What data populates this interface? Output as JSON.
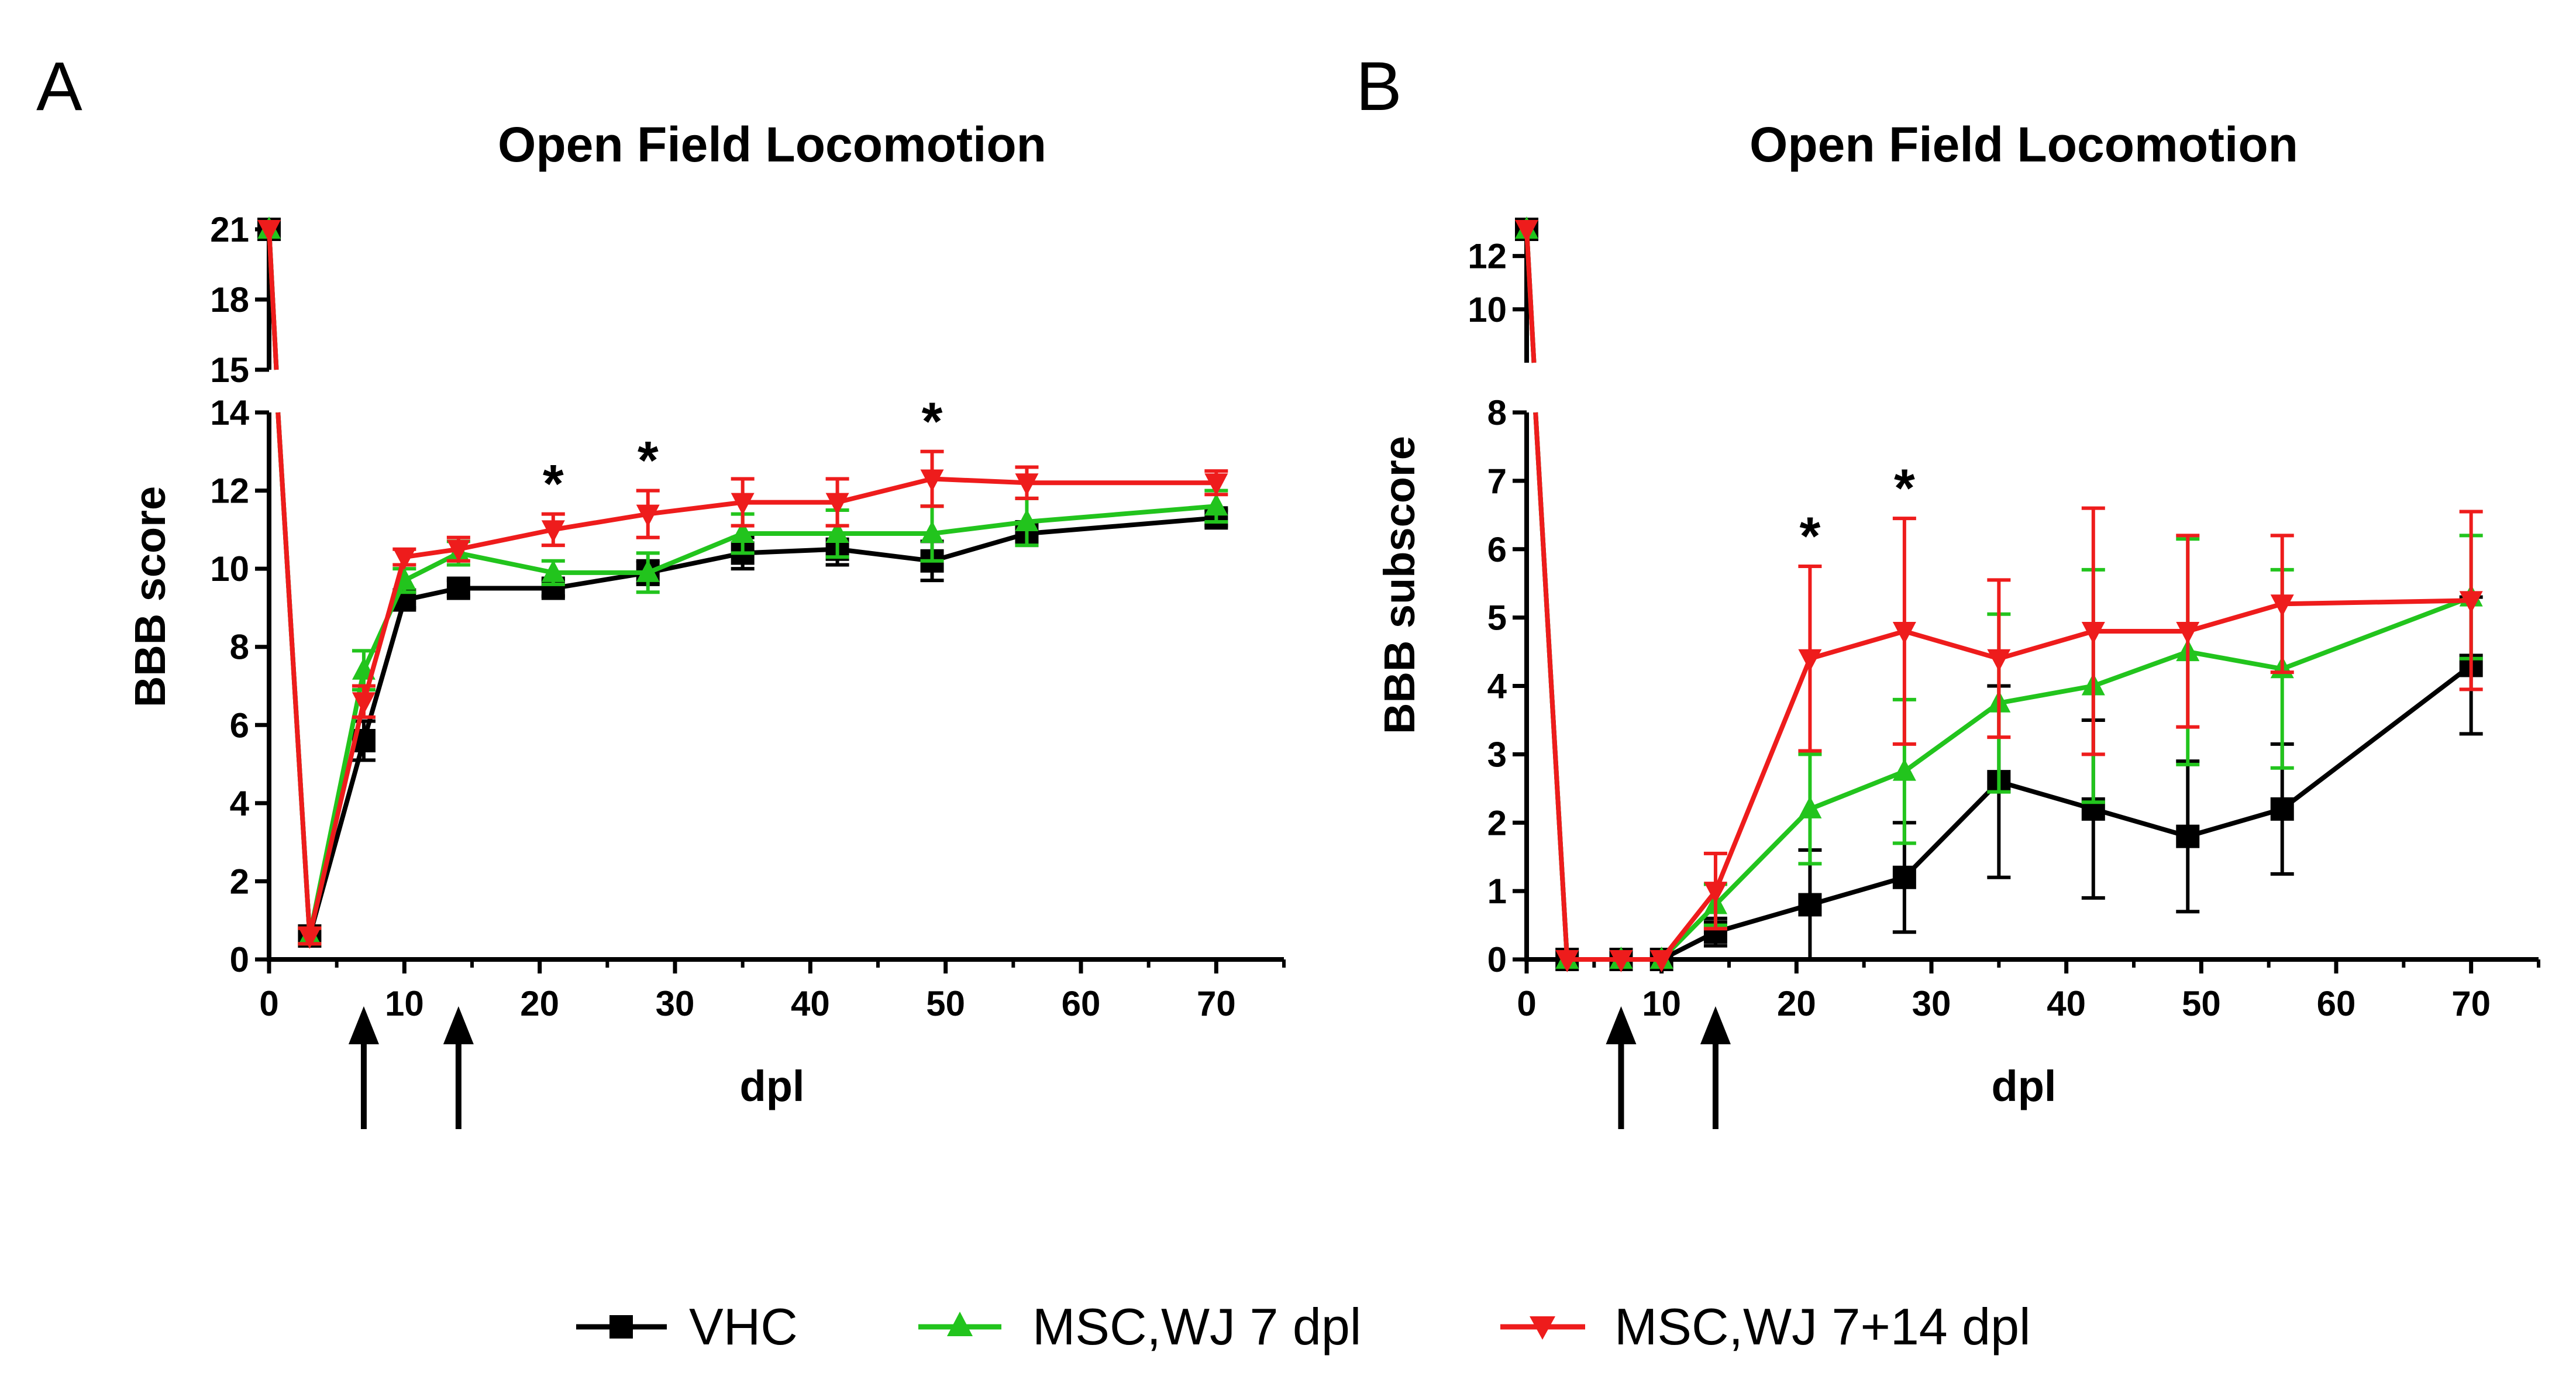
{
  "colors": {
    "VHC": "#000000",
    "MSC,WJ 7 dpl": "#22c41d",
    "MSC,WJ 7+14 dpl": "#ee1c1c"
  },
  "legend": [
    "VHC",
    "MSC,WJ 7 dpl",
    "MSC,WJ 7+14 dpl"
  ],
  "chart_data": [
    {
      "panel": "A",
      "type": "line",
      "title": "Open Field Locomotion",
      "xlabel": "dpl",
      "ylabel": "BBB score",
      "xlim": [
        0,
        75
      ],
      "x_ticks": [
        0,
        10,
        20,
        30,
        40,
        50,
        60,
        70
      ],
      "ylim_lower": [
        0,
        14
      ],
      "ylim_upper": [
        15,
        21
      ],
      "y_ticks_lower": [
        0,
        2,
        4,
        6,
        8,
        10,
        12,
        14
      ],
      "y_ticks_upper": [
        15,
        18,
        21
      ],
      "significance_x": [
        21,
        28,
        49
      ],
      "significance_label": "*",
      "treatment_arrows_x": [
        7,
        14
      ],
      "series": [
        {
          "name": "VHC",
          "marker": "square",
          "x": [
            0,
            3,
            7,
            10,
            14,
            21,
            28,
            35,
            42,
            49,
            56,
            70
          ],
          "y": [
            21,
            0.6,
            5.6,
            9.2,
            9.5,
            9.5,
            9.9,
            10.4,
            10.5,
            10.2,
            10.9,
            11.3
          ],
          "err": [
            0,
            0.2,
            0.5,
            0.2,
            0.2,
            0.2,
            0.3,
            0.4,
            0.4,
            0.5,
            0.3,
            0.2
          ]
        },
        {
          "name": "MSC,WJ 7 dpl",
          "marker": "triangle-up",
          "x": [
            0,
            3,
            7,
            10,
            14,
            21,
            28,
            35,
            42,
            49,
            56,
            70
          ],
          "y": [
            21,
            0.6,
            7.4,
            9.7,
            10.4,
            9.9,
            9.9,
            10.9,
            10.9,
            10.9,
            11.2,
            11.6
          ],
          "err": [
            0,
            0.2,
            0.5,
            0.3,
            0.3,
            0.3,
            0.5,
            0.5,
            0.6,
            0.7,
            0.6,
            0.4
          ]
        },
        {
          "name": "MSC,WJ 7+14 dpl",
          "marker": "triangle-down",
          "x": [
            0,
            3,
            7,
            10,
            14,
            21,
            28,
            35,
            42,
            49,
            56,
            70
          ],
          "y": [
            21,
            0.6,
            6.6,
            10.3,
            10.5,
            11.0,
            11.4,
            11.7,
            11.7,
            12.3,
            12.2,
            12.2
          ],
          "err": [
            0,
            0.2,
            0.4,
            0.2,
            0.3,
            0.4,
            0.6,
            0.6,
            0.6,
            0.7,
            0.4,
            0.3
          ]
        }
      ]
    },
    {
      "panel": "B",
      "type": "line",
      "title": "Open Field Locomotion",
      "xlabel": "dpl",
      "ylabel": "BBB subscore",
      "xlim": [
        0,
        75
      ],
      "x_ticks": [
        0,
        10,
        20,
        30,
        40,
        50,
        60,
        70
      ],
      "ylim_lower": [
        0,
        8
      ],
      "ylim_upper": [
        8,
        13
      ],
      "y_ticks_lower": [
        0,
        1,
        2,
        3,
        4,
        5,
        6,
        7,
        8
      ],
      "y_ticks_upper": [
        10,
        12
      ],
      "significance_x": [
        21,
        28
      ],
      "significance_label": "*",
      "treatment_arrows_x": [
        7,
        14
      ],
      "series": [
        {
          "name": "VHC",
          "marker": "square",
          "x": [
            0,
            3,
            7,
            10,
            14,
            21,
            28,
            35,
            42,
            49,
            56,
            70
          ],
          "y": [
            13,
            0,
            0,
            0,
            0.4,
            0.8,
            1.2,
            2.6,
            2.2,
            1.8,
            2.2,
            4.3
          ],
          "err": [
            0,
            0,
            0,
            0,
            0.2,
            0.8,
            0.8,
            1.4,
            1.3,
            1.1,
            0.95,
            1.0
          ]
        },
        {
          "name": "MSC,WJ 7 dpl",
          "marker": "triangle-up",
          "x": [
            0,
            3,
            7,
            10,
            14,
            21,
            28,
            35,
            42,
            49,
            56,
            70
          ],
          "y": [
            13,
            0,
            0,
            0,
            0.8,
            2.2,
            2.75,
            3.75,
            4.0,
            4.5,
            4.25,
            5.3
          ],
          "err": [
            0,
            0,
            0,
            0,
            0.3,
            0.8,
            1.05,
            1.3,
            1.7,
            1.65,
            1.45,
            0.9
          ]
        },
        {
          "name": "MSC,WJ 7+14 dpl",
          "marker": "triangle-down",
          "x": [
            0,
            3,
            7,
            10,
            14,
            21,
            28,
            35,
            42,
            49,
            56,
            70
          ],
          "y": [
            13,
            0,
            0,
            0,
            1.0,
            4.4,
            4.8,
            4.4,
            4.8,
            4.8,
            5.2,
            5.25
          ],
          "err": [
            0,
            0,
            0,
            0,
            0.55,
            1.35,
            1.65,
            1.15,
            1.8,
            1.4,
            1.0,
            1.3
          ]
        }
      ]
    }
  ]
}
